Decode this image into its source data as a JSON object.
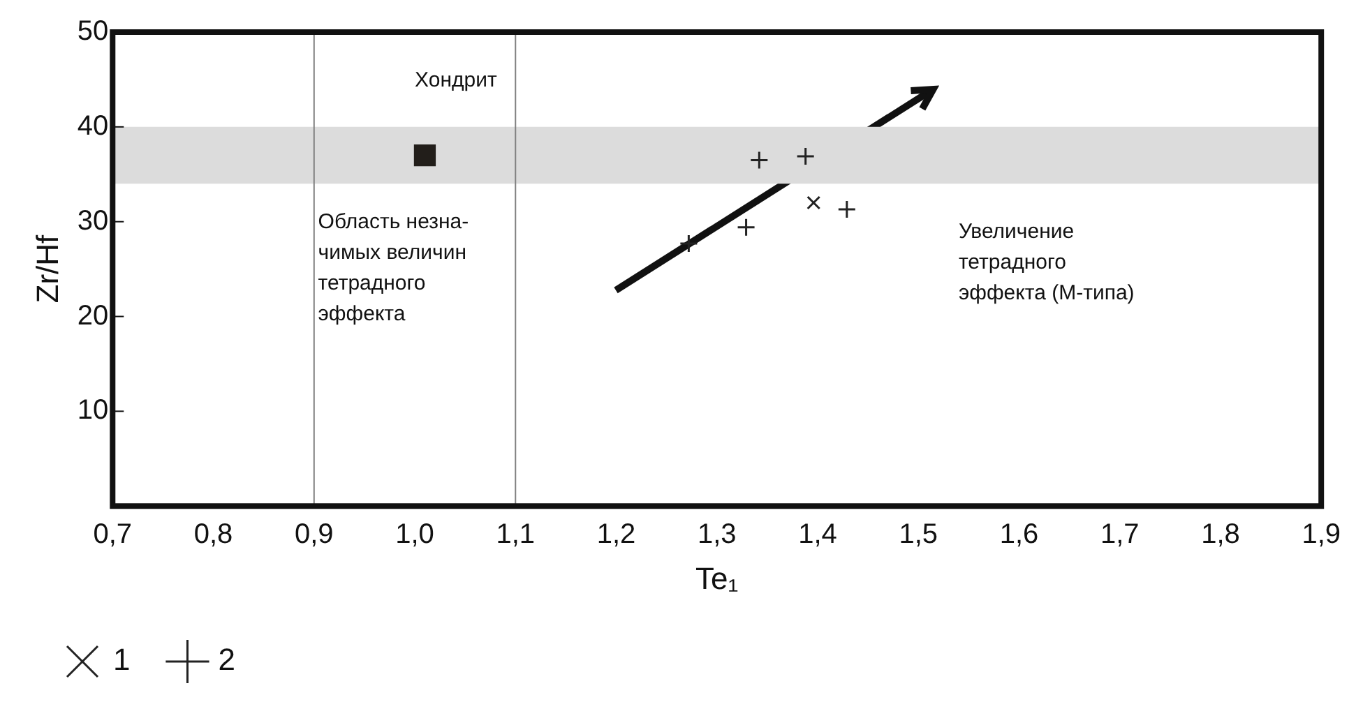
{
  "chart_data": {
    "type": "scatter",
    "xlabel": "Te₁",
    "ylabel": "Zr/Hf",
    "xlim": [
      0.7,
      1.9
    ],
    "ylim": [
      0,
      50
    ],
    "xticks": [
      {
        "value": 0.7,
        "label": "0,7"
      },
      {
        "value": 0.8,
        "label": "0,8"
      },
      {
        "value": 0.9,
        "label": "0,9"
      },
      {
        "value": 1.0,
        "label": "1,0"
      },
      {
        "value": 1.1,
        "label": "1,1"
      },
      {
        "value": 1.2,
        "label": "1,2"
      },
      {
        "value": 1.3,
        "label": "1,3"
      },
      {
        "value": 1.4,
        "label": "1,4"
      },
      {
        "value": 1.5,
        "label": "1,5"
      },
      {
        "value": 1.6,
        "label": "1,6"
      },
      {
        "value": 1.7,
        "label": "1,7"
      },
      {
        "value": 1.8,
        "label": "1,8"
      },
      {
        "value": 1.9,
        "label": "1,9"
      }
    ],
    "yticks": [
      10,
      20,
      30,
      40,
      50
    ],
    "grid": false,
    "legend": "bottom left",
    "series": [
      {
        "name": "1",
        "color": "#222222",
        "marker": "x",
        "x": [
          1.396
        ],
        "values": [
          32.0
        ]
      },
      {
        "name": "2",
        "color": "#222222",
        "marker": "cross",
        "x": [
          1.342,
          1.388,
          1.429,
          1.329,
          1.272
        ],
        "values": [
          36.5,
          36.9,
          31.3,
          29.4,
          27.7
        ]
      },
      {
        "color": "#221e1a",
        "marker": "square",
        "x": [
          1.01
        ],
        "values": [
          37
        ]
      }
    ],
    "bands": [
      {
        "axis": "y",
        "from": 34,
        "to": 40,
        "color": "#dcdcdc"
      }
    ],
    "ref_lines": [
      {
        "axis": "x",
        "value": 0.9,
        "color": "#808080"
      },
      {
        "axis": "x",
        "value": 1.1,
        "color": "#808080"
      }
    ],
    "annotations": [
      "Хондрит",
      "Область незна-\nчимых величин\nтетрадного\nэффекта",
      "Увеличение\nтетрадного\nэффекта (М-типа)"
    ]
  }
}
